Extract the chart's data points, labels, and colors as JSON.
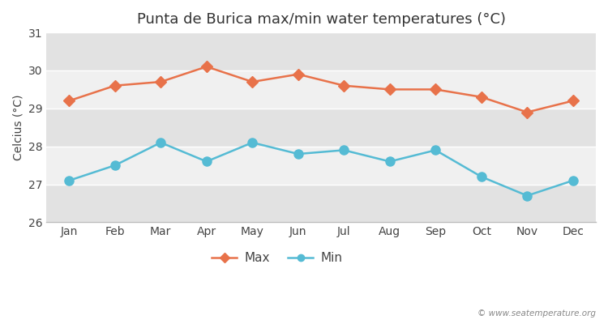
{
  "title": "Punta de Burica max/min water temperatures (°C)",
  "ylabel": "Celcius (°C)",
  "months": [
    "Jan",
    "Feb",
    "Mar",
    "Apr",
    "May",
    "Jun",
    "Jul",
    "Aug",
    "Sep",
    "Oct",
    "Nov",
    "Dec"
  ],
  "max_temps": [
    29.2,
    29.6,
    29.7,
    30.1,
    29.7,
    29.9,
    29.6,
    29.5,
    29.5,
    29.3,
    28.9,
    29.2
  ],
  "min_temps": [
    27.1,
    27.5,
    28.1,
    27.6,
    28.1,
    27.8,
    27.9,
    27.6,
    27.9,
    27.2,
    26.7,
    27.1
  ],
  "max_color": "#e8724a",
  "min_color": "#55bbd4",
  "fig_bg_color": "#ffffff",
  "plot_bg_color": "#f0f0f0",
  "band_color_light": "#f0f0f0",
  "band_color_dark": "#e2e2e2",
  "ylim": [
    26,
    31
  ],
  "yticks": [
    26,
    27,
    28,
    29,
    30,
    31
  ],
  "watermark": "© www.seatemperature.org",
  "max_marker": "D",
  "min_marker": "o",
  "linewidth": 1.8,
  "max_markersize": 7,
  "min_markersize": 8
}
